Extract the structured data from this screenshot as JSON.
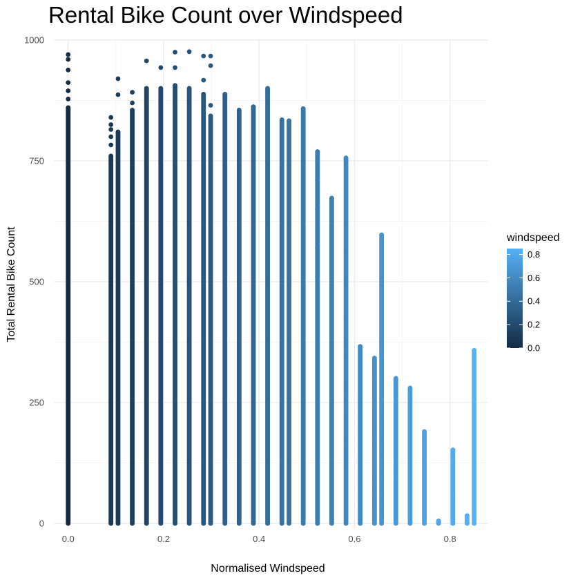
{
  "chart_data": {
    "type": "scatter",
    "title": "Rental Bike Count over Windspeed",
    "xlabel": "Normalised Windspeed",
    "ylabel": "Total Rental Bike Count",
    "xlim": [
      -0.03,
      0.88
    ],
    "ylim": [
      -10,
      1000
    ],
    "x_ticks": [
      0.0,
      0.2,
      0.4,
      0.6,
      0.8
    ],
    "x_tick_labels": [
      "0.0",
      "0.2",
      "0.4",
      "0.6",
      "0.8"
    ],
    "y_ticks": [
      0,
      250,
      500,
      750,
      1000
    ],
    "y_tick_labels": [
      "0",
      "250",
      "500",
      "750",
      "1000"
    ],
    "grid": true,
    "color_by": "windspeed",
    "color_scale": {
      "low": "#132b43",
      "high": "#56b1f7",
      "range": [
        0.0,
        0.85
      ]
    },
    "legend": {
      "title": "windspeed",
      "position": "right",
      "ticks": [
        0.0,
        0.2,
        0.4,
        0.6,
        0.8
      ],
      "tick_labels": [
        "0.0",
        "0.2",
        "0.4",
        "0.6",
        "0.8"
      ]
    },
    "columns": [
      {
        "x": 0.0,
        "ymin": 0,
        "ymax": 860,
        "outliers": [
          878,
          895,
          912,
          938,
          960,
          970
        ]
      },
      {
        "x": 0.0896,
        "ymin": 0,
        "ymax": 760,
        "outliers": [
          783,
          800,
          815,
          825,
          840
        ]
      },
      {
        "x": 0.1045,
        "ymin": 0,
        "ymax": 810,
        "outliers": [
          887,
          920
        ]
      },
      {
        "x": 0.1343,
        "ymin": 0,
        "ymax": 855,
        "outliers": [
          870,
          892
        ]
      },
      {
        "x": 0.1642,
        "ymin": 0,
        "ymax": 900,
        "outliers": [
          957
        ]
      },
      {
        "x": 0.194,
        "ymin": 0,
        "ymax": 900,
        "outliers": [
          943
        ]
      },
      {
        "x": 0.2239,
        "ymin": 0,
        "ymax": 906,
        "outliers": [
          943,
          975
        ]
      },
      {
        "x": 0.2537,
        "ymin": 0,
        "ymax": 900,
        "outliers": [
          976
        ]
      },
      {
        "x": 0.2836,
        "ymin": 0,
        "ymax": 888,
        "outliers": [
          917,
          967
        ]
      },
      {
        "x": 0.2985,
        "ymin": 0,
        "ymax": 843,
        "outliers": [
          865,
          947,
          967
        ]
      },
      {
        "x": 0.3284,
        "ymin": 0,
        "ymax": 888
      },
      {
        "x": 0.3582,
        "ymin": 0,
        "ymax": 855
      },
      {
        "x": 0.3881,
        "ymin": 0,
        "ymax": 862
      },
      {
        "x": 0.4179,
        "ymin": 0,
        "ymax": 900
      },
      {
        "x": 0.4478,
        "ymin": 0,
        "ymax": 835
      },
      {
        "x": 0.4627,
        "ymin": 0,
        "ymax": 833
      },
      {
        "x": 0.4925,
        "ymin": 0,
        "ymax": 858
      },
      {
        "x": 0.5224,
        "ymin": 0,
        "ymax": 769
      },
      {
        "x": 0.5522,
        "ymin": 0,
        "ymax": 673
      },
      {
        "x": 0.5821,
        "ymin": 0,
        "ymax": 756
      },
      {
        "x": 0.6119,
        "ymin": 0,
        "ymax": 366
      },
      {
        "x": 0.6418,
        "ymin": 0,
        "ymax": 342
      },
      {
        "x": 0.6567,
        "ymin": 0,
        "ymax": 597
      },
      {
        "x": 0.6866,
        "ymin": 0,
        "ymax": 300
      },
      {
        "x": 0.7164,
        "ymin": 0,
        "ymax": 280
      },
      {
        "x": 0.7463,
        "ymin": 0,
        "ymax": 190
      },
      {
        "x": 0.7761,
        "ymin": 0,
        "ymax": 5
      },
      {
        "x": 0.806,
        "ymin": 0,
        "ymax": 152
      },
      {
        "x": 0.8358,
        "ymin": 0,
        "ymax": 16
      },
      {
        "x": 0.8507,
        "ymin": 0,
        "ymax": 358
      }
    ],
    "points": [
      {
        "x": 0.6119,
        "y": 270
      },
      {
        "x": 0.6119,
        "y": 245
      },
      {
        "x": 0.6119,
        "y": 225
      },
      {
        "x": 0.6119,
        "y": 200
      },
      {
        "x": 0.6119,
        "y": 185
      },
      {
        "x": 0.6119,
        "y": 165
      },
      {
        "x": 0.6119,
        "y": 145
      },
      {
        "x": 0.6119,
        "y": 125
      },
      {
        "x": 0.6119,
        "y": 100
      },
      {
        "x": 0.6119,
        "y": 85
      },
      {
        "x": 0.6119,
        "y": 65
      },
      {
        "x": 0.6119,
        "y": 45
      },
      {
        "x": 0.6119,
        "y": 20
      },
      {
        "x": 0.6119,
        "y": 8
      },
      {
        "x": 0.6418,
        "y": 305
      },
      {
        "x": 0.6418,
        "y": 245
      },
      {
        "x": 0.6418,
        "y": 215
      },
      {
        "x": 0.6418,
        "y": 195
      },
      {
        "x": 0.6418,
        "y": 175
      },
      {
        "x": 0.6418,
        "y": 155
      },
      {
        "x": 0.6418,
        "y": 140
      },
      {
        "x": 0.6418,
        "y": 120
      },
      {
        "x": 0.6418,
        "y": 105
      },
      {
        "x": 0.6418,
        "y": 85
      },
      {
        "x": 0.6418,
        "y": 65
      },
      {
        "x": 0.6418,
        "y": 45
      },
      {
        "x": 0.6418,
        "y": 30
      },
      {
        "x": 0.6418,
        "y": 12
      },
      {
        "x": 0.6567,
        "y": 375
      },
      {
        "x": 0.6567,
        "y": 258
      },
      {
        "x": 0.6567,
        "y": 215
      },
      {
        "x": 0.6567,
        "y": 170
      },
      {
        "x": 0.6567,
        "y": 140
      },
      {
        "x": 0.6567,
        "y": 110
      },
      {
        "x": 0.6567,
        "y": 88
      },
      {
        "x": 0.6567,
        "y": 70
      },
      {
        "x": 0.6567,
        "y": 50
      },
      {
        "x": 0.6567,
        "y": 30
      },
      {
        "x": 0.6866,
        "y": 185
      },
      {
        "x": 0.6866,
        "y": 86
      },
      {
        "x": 0.6866,
        "y": 15
      },
      {
        "x": 0.6866,
        "y": 3
      },
      {
        "x": 0.7164,
        "y": 2
      },
      {
        "x": 0.7463,
        "y": 171
      },
      {
        "x": 0.806,
        "y": 55
      },
      {
        "x": 0.8507,
        "y": 180
      },
      {
        "x": 0.5821,
        "y": 565
      },
      {
        "x": 0.5821,
        "y": 422
      },
      {
        "x": 0.5821,
        "y": 385
      },
      {
        "x": 0.5821,
        "y": 365
      },
      {
        "x": 0.5821,
        "y": 350
      },
      {
        "x": 0.5821,
        "y": 293
      },
      {
        "x": 0.5821,
        "y": 275
      },
      {
        "x": 0.5821,
        "y": 225
      },
      {
        "x": 0.5821,
        "y": 175
      },
      {
        "x": 0.5821,
        "y": 150
      },
      {
        "x": 0.5821,
        "y": 135
      },
      {
        "x": 0.5821,
        "y": 120
      },
      {
        "x": 0.5521,
        "y": 590
      },
      {
        "x": 0.5521,
        "y": 455
      },
      {
        "x": 0.5521,
        "y": 375
      },
      {
        "x": 0.5521,
        "y": 325
      },
      {
        "x": 0.5221,
        "y": 710
      },
      {
        "x": 0.5221,
        "y": 650
      },
      {
        "x": 0.5221,
        "y": 570
      },
      {
        "x": 0.5221,
        "y": 510
      },
      {
        "x": 0.4926,
        "y": 710
      },
      {
        "x": 0.4926,
        "y": 700
      },
      {
        "x": 0.4926,
        "y": 640
      },
      {
        "x": 0.4926,
        "y": 612
      },
      {
        "x": 0.4926,
        "y": 580
      },
      {
        "x": 0.4926,
        "y": 492
      }
    ]
  }
}
